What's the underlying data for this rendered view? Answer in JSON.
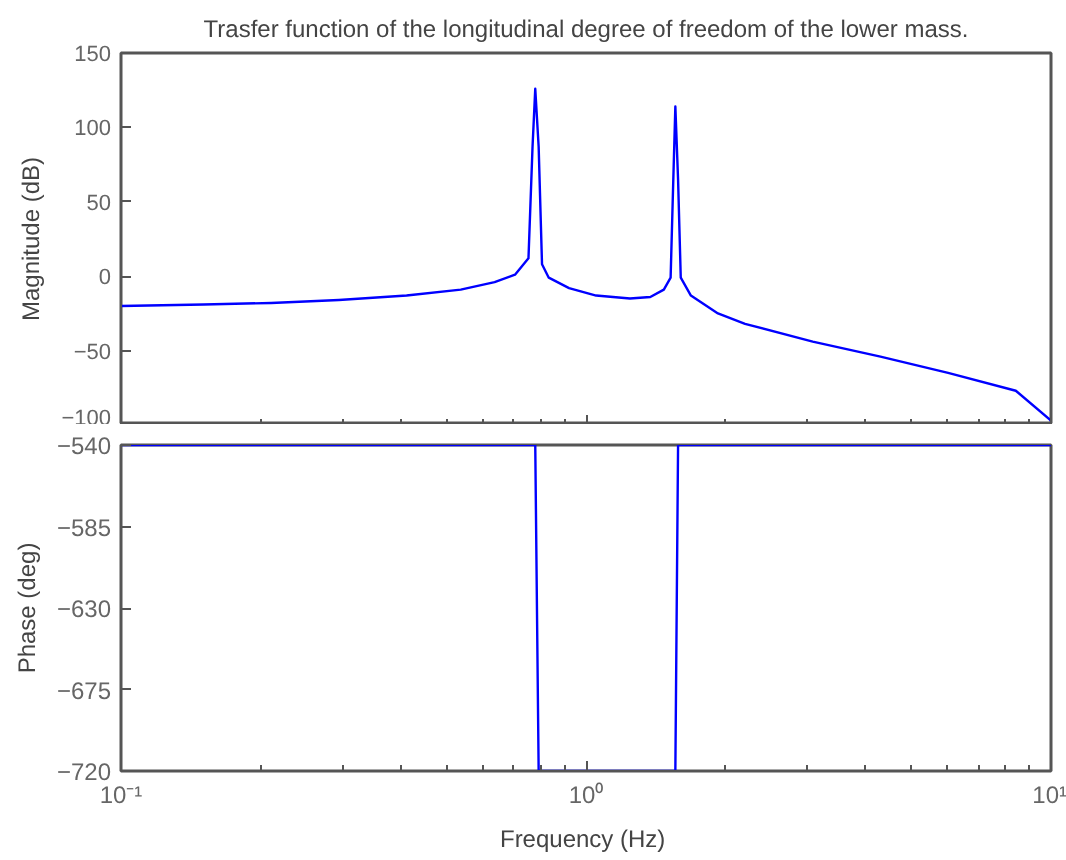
{
  "chart_data": [
    {
      "type": "line",
      "title": "Trasfer function of the longitudinal degree of freedom of the lower mass.",
      "ylabel": "Magnitude (dB)",
      "log": "x",
      "grid": false,
      "tick_labels": "y",
      "xlim": [
        0.1,
        10
      ],
      "xticks": [
        {
          "value": 0.1,
          "label": null
        },
        {
          "value": 1,
          "label": null
        },
        {
          "value": 10,
          "label": null
        }
      ],
      "ylim": [
        -100,
        150
      ],
      "yticks": [
        -100,
        -50,
        0,
        50,
        100,
        150
      ],
      "series": [
        {
          "color": "#0000ff",
          "x": [
            0.1,
            0.1505,
            0.2103,
            0.2942,
            0.4113,
            0.5378,
            0.636,
            0.7036,
            0.7521,
            0.7674,
            0.7778,
            0.791,
            0.8043,
            0.8316,
            0.9195,
            1.0515,
            1.2433,
            1.3748,
            1.4703,
            1.5205,
            1.5408,
            1.5565,
            1.5776,
            1.5988,
            1.681,
            1.922,
            2.198,
            3.073,
            4.298,
            6.008,
            8.401,
            10
          ],
          "values": [
            -20,
            -19,
            -18,
            -16,
            -13,
            -9,
            -4,
            1,
            12,
            87,
            126,
            87,
            8,
            -1,
            -8,
            -13,
            -15,
            -14,
            -9,
            -1,
            65,
            114,
            65,
            -1,
            -13,
            -25,
            -32,
            -44,
            -54,
            -65,
            -77,
            -97
          ]
        }
      ]
    },
    {
      "type": "line",
      "xlabel": "Frequency  (Hz)",
      "ylabel": "Phase (deg)",
      "log": "x",
      "grid": false,
      "xlim": [
        0.1,
        10
      ],
      "xticks": [
        {
          "value": 0.1,
          "label": "10⁻¹"
        },
        {
          "value": 1,
          "label": "10⁰"
        },
        {
          "value": 10,
          "label": "10¹"
        }
      ],
      "ylim": [
        -720,
        -540
      ],
      "yticks": [
        -720,
        -675,
        -630,
        -585,
        -540
      ],
      "series": [
        {
          "color": "#0000ff",
          "x": [
            0.1,
            0.7778,
            0.791,
            1.5565,
            1.5776,
            10
          ],
          "values": [
            -540,
            -540,
            -720,
            -720,
            -540,
            -540
          ]
        }
      ]
    }
  ]
}
